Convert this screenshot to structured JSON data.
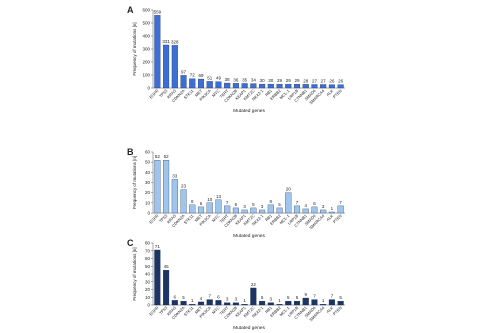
{
  "chart_data": [
    {
      "type": "bar",
      "label": "A",
      "ylabel": "Frequency of mutations [n]",
      "xlabel": "Mutated genes",
      "categories": [
        "EGFR",
        "TP53",
        "KRAS",
        "CDKN2A",
        "STK11",
        "MET",
        "PIK3CA",
        "MYC",
        "TERT",
        "CDKN2B",
        "KEAP1",
        "KMT2C",
        "NKX2-1",
        "RB1",
        "ERBB2",
        "MCL-1",
        "LRP1B",
        "CTNNB1",
        "SMAD4",
        "SMARCA4",
        "ALK",
        "PTEN"
      ],
      "values": [
        559,
        331,
        328,
        97,
        72,
        69,
        51,
        49,
        38,
        36,
        35,
        34,
        30,
        30,
        29,
        29,
        29,
        28,
        27,
        27,
        26,
        26
      ],
      "color": "#3b6fd4",
      "ylim": [
        0,
        600
      ],
      "yticks": [
        0,
        100,
        200,
        300,
        400,
        500,
        600
      ]
    },
    {
      "type": "bar",
      "label": "B",
      "ylabel": "Frequency of mutations [n]",
      "xlabel": "Mutated genes",
      "categories": [
        "EGFR",
        "TP53",
        "KRAS",
        "CDKN2A",
        "STK11",
        "MET",
        "PIK3CA",
        "MYC",
        "TERT",
        "CDKN2B",
        "KEAP1",
        "KMT2C",
        "NKX2-1",
        "RB1",
        "ERBB2",
        "MCL-1",
        "LRP1B",
        "CTNNB1",
        "SMAD4",
        "SMARCA4",
        "ALK",
        "PTEN"
      ],
      "values": [
        52,
        52,
        33,
        23,
        8,
        6,
        10,
        13,
        7,
        5,
        3,
        5,
        3,
        8,
        5,
        20,
        7,
        4,
        6,
        3,
        1,
        7
      ],
      "color": "#9fc5ec",
      "ylim": [
        0,
        60
      ],
      "yticks": [
        0,
        10,
        20,
        30,
        40,
        50,
        60
      ]
    },
    {
      "type": "bar",
      "label": "C",
      "ylabel": "Frequency of mutations [n]",
      "xlabel": "Mutated genes",
      "categories": [
        "EGFR",
        "TP53",
        "KRAS",
        "CDKN2A",
        "STK11",
        "MET",
        "PIK3CA",
        "MYC",
        "TERT",
        "CDKN2B",
        "KEAP1",
        "KMT2C",
        "NKX2-1",
        "RB1",
        "ERBB2",
        "MCL-1",
        "LRP1B",
        "CTNNB1",
        "SMAD4",
        "SMARCA4",
        "ALK",
        "PTEN"
      ],
      "values": [
        71,
        45,
        6,
        5,
        1,
        4,
        7,
        6,
        3,
        3,
        1,
        22,
        5,
        3,
        1,
        5,
        5,
        9,
        7,
        1,
        7,
        5
      ],
      "color": "#1d3565",
      "ylim": [
        0,
        80
      ],
      "yticks": [
        0,
        10,
        20,
        30,
        40,
        50,
        60,
        70,
        80
      ]
    }
  ]
}
